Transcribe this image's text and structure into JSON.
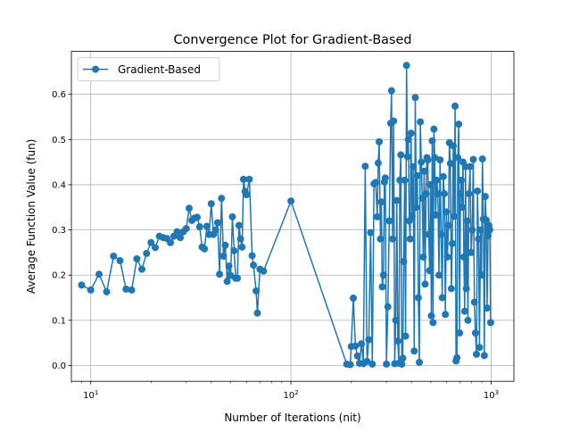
{
  "colors": {
    "series": "#1f77b4",
    "grid": "#b0b0b0",
    "axis": "#000000"
  },
  "chart_data": {
    "type": "line",
    "title": "Convergence Plot for Gradient-Based",
    "xlabel": "Number of Iterations (nit)",
    "ylabel": "Average Function Value (fun)",
    "xscale": "log",
    "xlim": [
      8,
      1300
    ],
    "ylim": [
      -0.035,
      0.695
    ],
    "grid": true,
    "legend_position": "top-left",
    "x_ticks": [
      {
        "value": 10,
        "base": "10",
        "exp": "1"
      },
      {
        "value": 100,
        "base": "10",
        "exp": "2"
      },
      {
        "value": 1000,
        "base": "10",
        "exp": "3"
      }
    ],
    "y_ticks": [
      "0.0",
      "0.1",
      "0.2",
      "0.3",
      "0.4",
      "0.5",
      "0.6"
    ],
    "series": [
      {
        "name": "Gradient-Based",
        "marker": "circle",
        "points": [
          [
            9,
            0.178
          ],
          [
            10,
            0.167
          ],
          [
            11,
            0.202
          ],
          [
            12,
            0.163
          ],
          [
            13,
            0.242
          ],
          [
            14,
            0.232
          ],
          [
            15,
            0.169
          ],
          [
            16,
            0.167
          ],
          [
            17,
            0.236
          ],
          [
            18,
            0.213
          ],
          [
            19,
            0.248
          ],
          [
            20,
            0.272
          ],
          [
            21,
            0.261
          ],
          [
            22,
            0.286
          ],
          [
            23,
            0.283
          ],
          [
            24,
            0.281
          ],
          [
            25,
            0.272
          ],
          [
            26,
            0.286
          ],
          [
            27,
            0.296
          ],
          [
            28,
            0.283
          ],
          [
            29,
            0.296
          ],
          [
            30,
            0.303
          ],
          [
            31,
            0.348
          ],
          [
            32,
            0.321
          ],
          [
            33,
            0.326
          ],
          [
            34,
            0.328
          ],
          [
            35,
            0.307
          ],
          [
            36,
            0.262
          ],
          [
            37,
            0.258
          ],
          [
            38,
            0.308
          ],
          [
            39,
            0.29
          ],
          [
            40,
            0.358
          ],
          [
            41,
            0.29
          ],
          [
            42,
            0.3
          ],
          [
            43,
            0.316
          ],
          [
            44,
            0.202
          ],
          [
            45,
            0.37
          ],
          [
            46,
            0.242
          ],
          [
            47,
            0.266
          ],
          [
            48,
            0.186
          ],
          [
            49,
            0.22
          ],
          [
            50,
            0.199
          ],
          [
            51,
            0.329
          ],
          [
            52,
            0.254
          ],
          [
            53,
            0.193
          ],
          [
            54,
            0.193
          ],
          [
            55,
            0.31
          ],
          [
            56,
            0.28
          ],
          [
            57,
            0.262
          ],
          [
            58,
            0.412
          ],
          [
            59,
            0.385
          ],
          [
            60,
            0.378
          ],
          [
            62,
            0.412
          ],
          [
            64,
            0.243
          ],
          [
            65,
            0.222
          ],
          [
            67,
            0.165
          ],
          [
            68,
            0.116
          ],
          [
            70,
            0.213
          ],
          [
            73,
            0.209
          ],
          [
            100,
            0.364
          ],
          [
            190,
            0.003
          ],
          [
            198,
            0.002
          ],
          [
            200,
            0.042
          ],
          [
            205,
            0.149
          ],
          [
            210,
            0.043
          ],
          [
            215,
            0.021
          ],
          [
            220,
            0.005
          ],
          [
            225,
            0.048
          ],
          [
            230,
            0.004
          ],
          [
            235,
            0.441
          ],
          [
            240,
            0.009
          ],
          [
            245,
            0.057
          ],
          [
            250,
            0.294
          ],
          [
            255,
            0.003
          ],
          [
            260,
            0.402
          ],
          [
            265,
            0.405
          ],
          [
            270,
            0.329
          ],
          [
            273,
            0.448
          ],
          [
            276,
            0.495
          ],
          [
            280,
            0.28
          ],
          [
            283,
            0.362
          ],
          [
            286,
            0.174
          ],
          [
            290,
            0.2
          ],
          [
            293,
            0.406
          ],
          [
            296,
            0.415
          ],
          [
            300,
            0.003
          ],
          [
            305,
            0.13
          ],
          [
            310,
            0.32
          ],
          [
            315,
            0.536
          ],
          [
            318,
            0.608
          ],
          [
            322,
            0.28
          ],
          [
            326,
            0.541
          ],
          [
            330,
            0.004
          ],
          [
            334,
            0.1
          ],
          [
            338,
            0.365
          ],
          [
            342,
            0.054
          ],
          [
            346,
            0.005
          ],
          [
            350,
            0.41
          ],
          [
            354,
            0.466
          ],
          [
            358,
            0.003
          ],
          [
            362,
            0.016
          ],
          [
            366,
            0.23
          ],
          [
            370,
            0.41
          ],
          [
            374,
            0.065
          ],
          [
            378,
            0.664
          ],
          [
            382,
            0.462
          ],
          [
            386,
            0.5
          ],
          [
            390,
            0.32
          ],
          [
            394,
            0.28
          ],
          [
            398,
            0.514
          ],
          [
            403,
            0.33
          ],
          [
            408,
            0.44
          ],
          [
            413,
            0.032
          ],
          [
            418,
            0.593
          ],
          [
            423,
            0.35
          ],
          [
            428,
            0.42
          ],
          [
            433,
            0.15
          ],
          [
            438,
            0.007
          ],
          [
            443,
            0.539
          ],
          [
            448,
            0.45
          ],
          [
            453,
            0.37
          ],
          [
            458,
            0.24
          ],
          [
            463,
            0.43
          ],
          [
            468,
            0.18
          ],
          [
            473,
            0.38
          ],
          [
            478,
            0.46
          ],
          [
            483,
            0.455
          ],
          [
            488,
            0.29
          ],
          [
            493,
            0.21
          ],
          [
            498,
            0.4
          ],
          [
            503,
            0.11
          ],
          [
            508,
            0.497
          ],
          [
            513,
            0.095
          ],
          [
            518,
            0.523
          ],
          [
            523,
            0.46
          ],
          [
            528,
            0.333
          ],
          [
            535,
            0.41
          ],
          [
            542,
            0.38
          ],
          [
            549,
            0.2
          ],
          [
            556,
            0.455
          ],
          [
            563,
            0.29
          ],
          [
            570,
            0.15
          ],
          [
            577,
            0.418
          ],
          [
            584,
            0.38
          ],
          [
            591,
            0.113
          ],
          [
            598,
            0.34
          ],
          [
            605,
            0.24
          ],
          [
            612,
            0.31
          ],
          [
            619,
            0.493
          ],
          [
            626,
            0.447
          ],
          [
            633,
            0.17
          ],
          [
            640,
            0.27
          ],
          [
            647,
            0.486
          ],
          [
            654,
            0.33
          ],
          [
            661,
            0.574
          ],
          [
            668,
            0.01
          ],
          [
            675,
            0.017
          ],
          [
            682,
            0.46
          ],
          [
            689,
            0.534
          ],
          [
            696,
            0.072
          ],
          [
            703,
            0.38
          ],
          [
            710,
            0.41
          ],
          [
            717,
            0.35
          ],
          [
            724,
            0.45
          ],
          [
            731,
            0.24
          ],
          [
            738,
            0.12
          ],
          [
            745,
            0.44
          ],
          [
            752,
            0.17
          ],
          [
            759,
            0.32
          ],
          [
            766,
            0.1
          ],
          [
            775,
            0.38
          ],
          [
            785,
            0.44
          ],
          [
            795,
            0.25
          ],
          [
            805,
            0.3
          ],
          [
            815,
            0.456
          ],
          [
            825,
            0.14
          ],
          [
            835,
            0.072
          ],
          [
            845,
            0.025
          ],
          [
            855,
            0.386
          ],
          [
            865,
            0.28
          ],
          [
            875,
            0.04
          ],
          [
            885,
            0.3
          ],
          [
            895,
            0.2
          ],
          [
            905,
            0.457
          ],
          [
            915,
            0.324
          ],
          [
            925,
            0.022
          ],
          [
            935,
            0.374
          ],
          [
            945,
            0.322
          ],
          [
            955,
            0.127
          ],
          [
            965,
            0.287
          ],
          [
            975,
            0.31
          ],
          [
            985,
            0.3
          ],
          [
            995,
            0.095
          ]
        ]
      }
    ]
  }
}
